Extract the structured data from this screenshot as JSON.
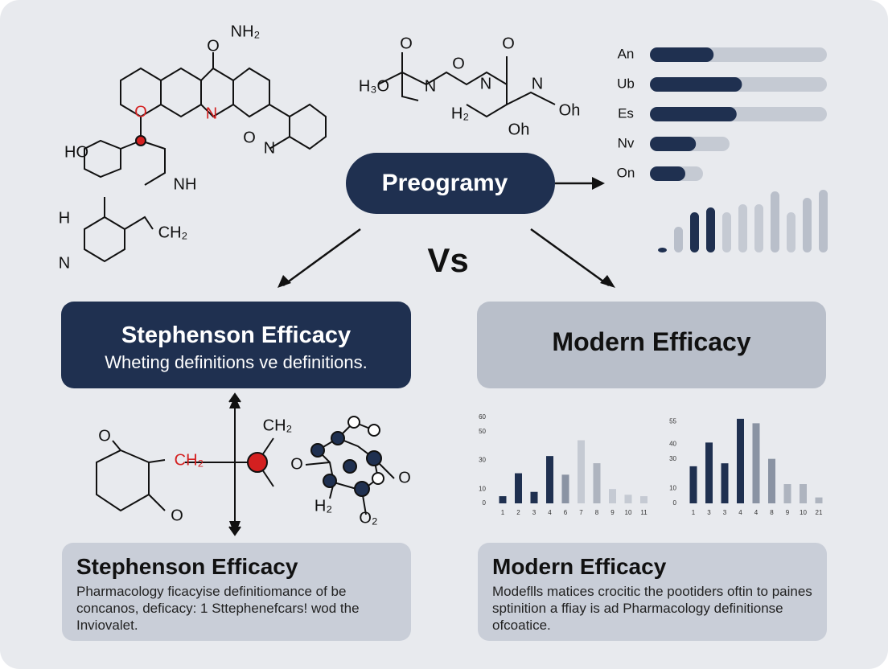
{
  "center_label": "Preogramy",
  "vs": "Vs",
  "left_box": {
    "title": "Stephenson Efficacy",
    "subtitle": "Wheting definitions ve definitions."
  },
  "right_box": {
    "title": "Modern Efficacy"
  },
  "left_card": {
    "title": "Stephenson Efficacy",
    "text": "Pharmacology ficacyise definitiomance of be concanos, deficacy: 1 Sttephenefcars! wod the Inviovalet."
  },
  "right_card": {
    "title": "Modern Efficacy",
    "text": "Modeflls matices crocitic the pootiders oftin to paines sptinition a ffiay is ad Pharmacology definitionse ofcoatice."
  },
  "molecule_labels": [
    "O",
    "NH₂",
    "O",
    "N",
    "O",
    "N",
    "HO",
    "NH",
    "H",
    "CH₂",
    "N",
    "O",
    "H₃O",
    "N",
    "O",
    "N",
    "O",
    "N",
    "Oh",
    "H₂",
    "Oh",
    "O",
    "CH₂",
    "O",
    "CH₂",
    "O",
    "H₂",
    "O₂",
    "O"
  ],
  "chart_data": [
    {
      "type": "progress",
      "categories": [
        "An",
        "Ub",
        "Es",
        "Nv",
        "On"
      ],
      "values": [
        36,
        52,
        49,
        26,
        20
      ],
      "totals": [
        100,
        100,
        100,
        45,
        30
      ],
      "xlim": [
        0,
        100
      ],
      "color": "#1f3050",
      "track_color": "#c5cad3"
    },
    {
      "type": "column",
      "values": [
        0.6,
        3.2,
        5,
        5.6,
        5,
        6,
        6,
        7.6,
        5,
        6.8,
        7.8
      ],
      "ylim": [
        0,
        8
      ],
      "colors": [
        "#1f3050",
        "#b9bfca",
        "#1f3050",
        "#1f3050",
        "#c5cad3",
        "#c5cad3",
        "#c5cad3",
        "#b9bfca",
        "#c5cad3",
        "#b9bfca",
        "#b9bfca"
      ]
    },
    {
      "type": "bar",
      "categories": [
        "1",
        "2",
        "3",
        "4",
        "6",
        "7",
        "8",
        "9",
        "10",
        "11"
      ],
      "values": [
        5,
        21,
        8,
        33,
        20,
        44,
        28,
        10,
        6,
        5
      ],
      "ylim": [
        0,
        60
      ],
      "yticks": [
        0,
        10,
        30,
        50,
        60
      ],
      "colors": [
        "#1f3050",
        "#1f3050",
        "#1f3050",
        "#1f3050",
        "#8a93a3",
        "#c5cad3",
        "#aeb4bf",
        "#c5cad3",
        "#c5cad3",
        "#c5cad3"
      ]
    },
    {
      "type": "bar",
      "categories": [
        "1",
        "3",
        "3",
        "4",
        "4",
        "8",
        "9",
        "10",
        "21"
      ],
      "values": [
        25,
        41,
        27,
        57,
        54,
        30,
        13,
        13,
        4
      ],
      "ylim": [
        0,
        58
      ],
      "yticks": [
        0,
        10,
        30,
        40,
        55
      ],
      "colors": [
        "#1f3050",
        "#1f3050",
        "#1f3050",
        "#1f3050",
        "#8a93a3",
        "#8a93a3",
        "#aeb4bf",
        "#aeb4bf",
        "#aeb4bf"
      ]
    }
  ]
}
